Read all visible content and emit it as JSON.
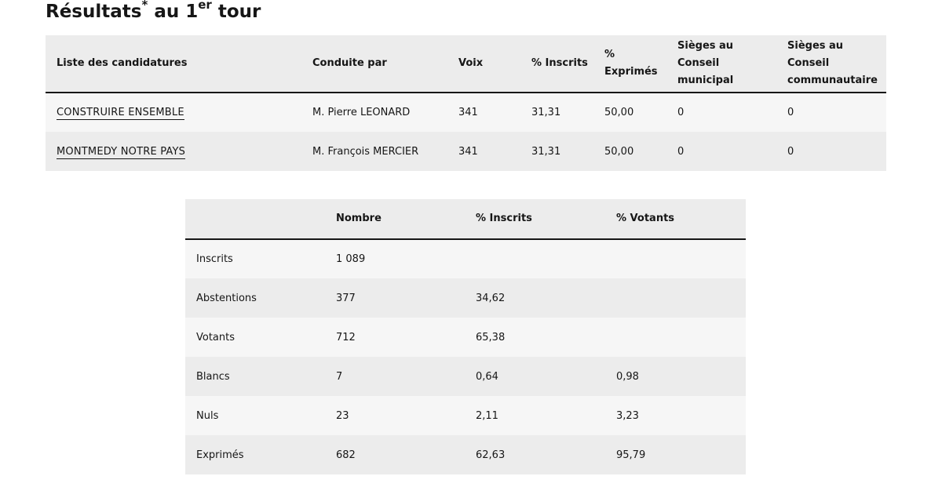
{
  "title": {
    "main": "Résultats",
    "asterisk": "*",
    "middle": " au 1",
    "ordinal": "er",
    "end": " tour"
  },
  "results_table": {
    "headers": {
      "list": "Liste des candidatures",
      "led_by": "Conduite par",
      "votes": "Voix",
      "pct_registered": "% Inscrits",
      "pct_expressed_line1": "%",
      "pct_expressed_line2": "Exprimés",
      "seats_municipal_line1": "Sièges au Conseil",
      "seats_municipal_line2": "municipal",
      "seats_community_line1": "Sièges au Conseil",
      "seats_community_line2": "communautaire"
    },
    "rows": [
      {
        "list": "CONSTRUIRE ENSEMBLE",
        "led_by": "M. Pierre LEONARD",
        "votes": "341",
        "pct_registered": "31,31",
        "pct_expressed": "50,00",
        "seats_municipal": "0",
        "seats_community": "0"
      },
      {
        "list": "MONTMEDY NOTRE PAYS",
        "led_by": "M. François MERCIER",
        "votes": "341",
        "pct_registered": "31,31",
        "pct_expressed": "50,00",
        "seats_municipal": "0",
        "seats_community": "0"
      }
    ]
  },
  "participation_table": {
    "headers": {
      "label": "",
      "count": "Nombre",
      "pct_registered": "% Inscrits",
      "pct_voters": "% Votants"
    },
    "rows": [
      {
        "label": "Inscrits",
        "count": "1 089",
        "pct_registered": "",
        "pct_voters": ""
      },
      {
        "label": "Abstentions",
        "count": "377",
        "pct_registered": "34,62",
        "pct_voters": ""
      },
      {
        "label": "Votants",
        "count": "712",
        "pct_registered": "65,38",
        "pct_voters": ""
      },
      {
        "label": "Blancs",
        "count": "7",
        "pct_registered": "0,64",
        "pct_voters": "0,98"
      },
      {
        "label": "Nuls",
        "count": "23",
        "pct_registered": "2,11",
        "pct_voters": "3,23"
      },
      {
        "label": "Exprimés",
        "count": "682",
        "pct_registered": "62,63",
        "pct_voters": "95,79"
      }
    ]
  }
}
